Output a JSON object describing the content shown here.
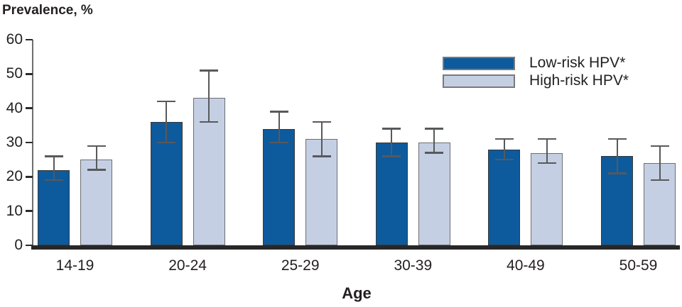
{
  "chart_data": {
    "type": "bar",
    "title": "Prevalence, %",
    "xlabel": "Age",
    "ylabel": "Prevalence, %",
    "categories": [
      "14-19",
      "20-24",
      "25-29",
      "30-39",
      "40-49",
      "50-59"
    ],
    "series": [
      {
        "name": "Low-risk HPV*",
        "color": "#0d5a9d",
        "border_color": "#3a3a3a",
        "values": [
          22,
          36,
          34,
          30,
          28,
          26
        ],
        "ci_low": [
          19,
          30,
          30,
          26,
          25,
          21
        ],
        "ci_high": [
          26,
          42,
          39,
          34,
          31,
          31
        ]
      },
      {
        "name": "High-risk HPV*",
        "color": "#c5cfe4",
        "border_color": "#6d6e71",
        "values": [
          25,
          43,
          31,
          30,
          27,
          24
        ],
        "ci_low": [
          22,
          36,
          26,
          27,
          24,
          19
        ],
        "ci_high": [
          29,
          51,
          36,
          34,
          31,
          29
        ]
      }
    ],
    "ylim": [
      0,
      60
    ],
    "yticks": [
      0,
      10,
      20,
      30,
      40,
      50,
      60
    ],
    "grid": "off",
    "legend_position": "upper right",
    "error_bar_color": "#58595b",
    "axis_line_color": "#6f6f6f",
    "tick_mark_color": "#2b2b2b",
    "baseline_color": "#272727",
    "text_color": "#231f20"
  }
}
